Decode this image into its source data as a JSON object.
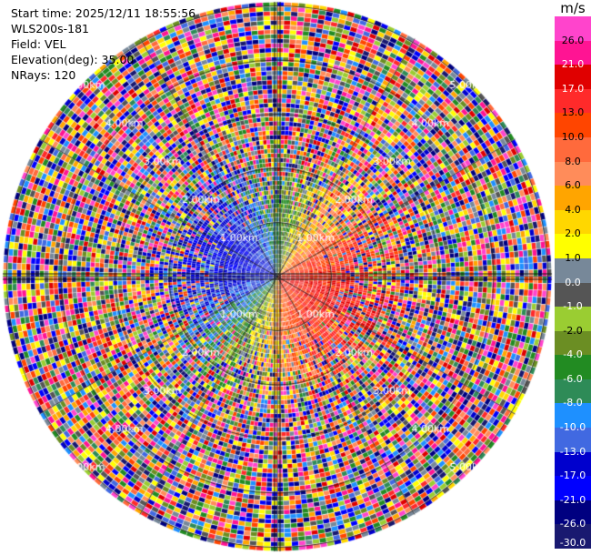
{
  "info": {
    "start_time": "Start time: 2025/12/11 18:55:56",
    "instrument": "WLS200s-181",
    "field": "Field: VEL",
    "elevation": "Elevation(deg): 35.00",
    "nrays": "NRays: 120"
  },
  "chart_data": {
    "type": "heatmap",
    "subtype": "polar-ppi",
    "field": "VEL",
    "unit": "m/s",
    "elevation_deg": 35.0,
    "nrays": 120,
    "range_rings_km": [
      1.0,
      2.0,
      3.0,
      4.0,
      5.0
    ],
    "ring_labels": [
      "1.00km",
      "2.00km",
      "3.00km",
      "4.00km",
      "5.00km"
    ],
    "max_range_km": 5.0,
    "colorbar": {
      "ticks": [
        "26.0",
        "21.0",
        "17.0",
        "13.0",
        "10.0",
        "8.0",
        "6.0",
        "4.0",
        "2.0",
        "1.0",
        "0.0",
        "-1.0",
        "-2.0",
        "-4.0",
        "-6.0",
        "-8.0",
        "-10.0",
        "-13.0",
        "-17.0",
        "-21.0",
        "-26.0",
        "-30.0"
      ],
      "colors": [
        "#ff44cc",
        "#ff1493",
        "#e00000",
        "#ff2a2a",
        "#ff4500",
        "#ff6a3c",
        "#ff8c5a",
        "#ffa500",
        "#ffd700",
        "#ffff00",
        "#778899",
        "#555555",
        "#9acd32",
        "#6b8e23",
        "#228b22",
        "#2e8b57",
        "#1e90ff",
        "#4169e1",
        "#0000cd",
        "#0000ff",
        "#000080",
        "#191970"
      ]
    },
    "pattern": "near-range: positive (red/orange) to the east and south, negative (blue) to the west and north; far range dominated by noisy speckle across full velocity scale"
  }
}
